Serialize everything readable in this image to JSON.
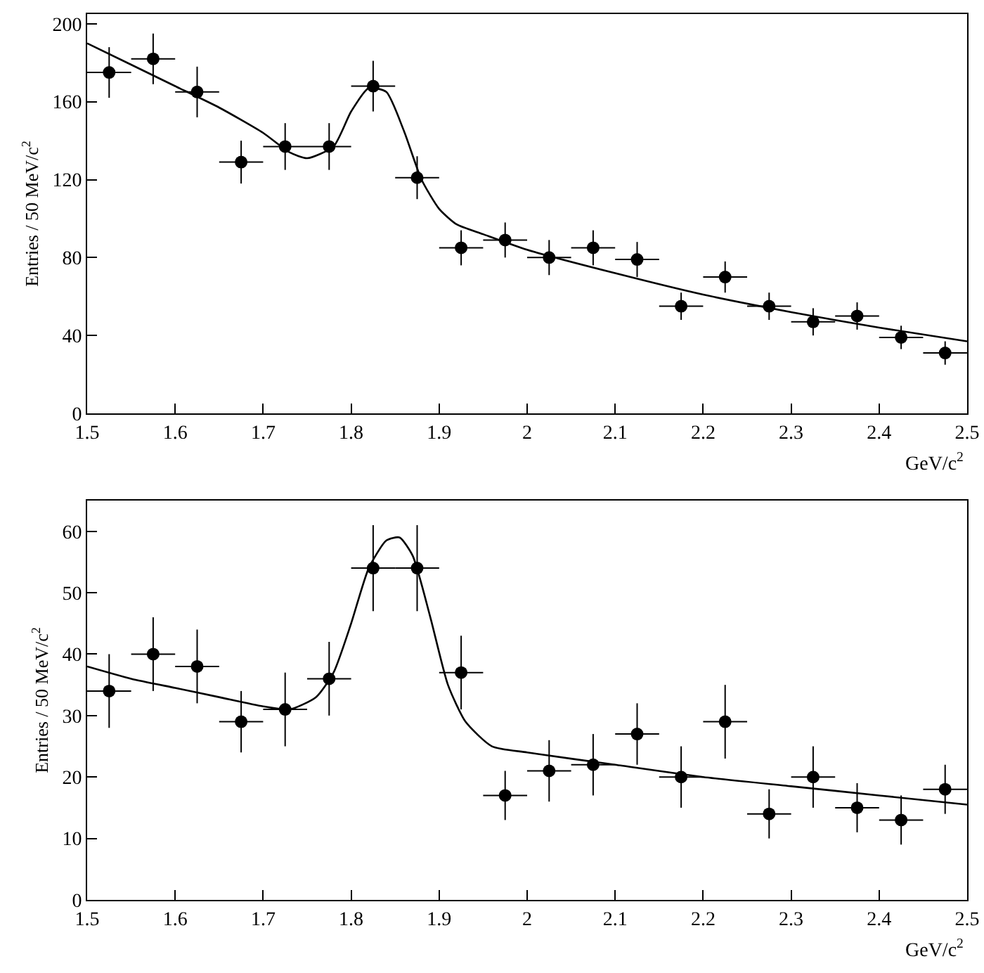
{
  "chart_data": [
    {
      "type": "scatter",
      "xlabel": "GeV/c$^{2}$",
      "ylabel": "Entries / 50 MeV/c$^{2}$",
      "xlim": [
        1.5,
        2.5
      ],
      "xticks": [
        1.5,
        1.6,
        1.7,
        1.8,
        1.9,
        2,
        2.1,
        2.2,
        2.3,
        2.4,
        2.5
      ],
      "ylim": [
        0,
        205
      ],
      "yticks": [
        0,
        40,
        80,
        120,
        160,
        200
      ],
      "grid": false,
      "series": [
        {
          "marker": "circle",
          "color": "#000000",
          "x": [
            1.525,
            1.575,
            1.625,
            1.675,
            1.725,
            1.775,
            1.825,
            1.875,
            1.925,
            1.975,
            2.025,
            2.075,
            2.125,
            2.175,
            2.225,
            2.275,
            2.325,
            2.375,
            2.425,
            2.475
          ],
          "values": [
            175,
            182,
            165,
            129,
            137,
            137,
            168,
            121,
            85,
            89,
            80,
            85,
            79,
            55,
            70,
            55,
            47,
            50,
            39,
            31
          ],
          "errors": [
            13,
            13,
            13,
            11,
            12,
            12,
            13,
            11,
            9,
            9,
            9,
            9,
            9,
            7,
            8,
            7,
            7,
            7,
            6,
            6
          ],
          "xerrors": [
            0.025,
            0.025,
            0.025,
            0.025,
            0.025,
            0.025,
            0.025,
            0.025,
            0.025,
            0.025,
            0.025,
            0.025,
            0.025,
            0.025,
            0.025,
            0.025,
            0.025,
            0.025,
            0.025,
            0.025
          ]
        },
        {
          "type": "line",
          "color": "#000000",
          "line_style": "solid",
          "x": [
            1.5,
            1.55,
            1.6,
            1.65,
            1.7,
            1.73,
            1.75,
            1.78,
            1.8,
            1.82,
            1.84,
            1.86,
            1.88,
            1.9,
            1.92,
            1.95,
            2.0,
            2.1,
            2.2,
            2.3,
            2.4,
            2.5
          ],
          "values": [
            190,
            179,
            168,
            157,
            144,
            134,
            131,
            137,
            155,
            167,
            165,
            145,
            120,
            105,
            97,
            92,
            84,
            72,
            61,
            52,
            44,
            37
          ]
        }
      ]
    },
    {
      "type": "scatter",
      "xlabel": "GeV/c$^{2}$",
      "ylabel": "Entries / 50 MeV/c$^{2}$",
      "xlim": [
        1.5,
        2.5
      ],
      "xticks": [
        1.5,
        1.6,
        1.7,
        1.8,
        1.9,
        2,
        2.1,
        2.2,
        2.3,
        2.4,
        2.5
      ],
      "ylim": [
        0,
        65
      ],
      "yticks": [
        0,
        10,
        20,
        30,
        40,
        50,
        60
      ],
      "grid": false,
      "series": [
        {
          "marker": "circle",
          "color": "#000000",
          "x": [
            1.525,
            1.575,
            1.625,
            1.675,
            1.725,
            1.775,
            1.825,
            1.875,
            1.925,
            1.975,
            2.025,
            2.075,
            2.125,
            2.175,
            2.225,
            2.275,
            2.325,
            2.375,
            2.425,
            2.475
          ],
          "values": [
            34,
            40,
            38,
            29,
            31,
            36,
            54,
            54,
            37,
            17,
            21,
            22,
            27,
            20,
            29,
            14,
            20,
            15,
            13,
            18
          ],
          "errors": [
            6,
            6,
            6,
            5,
            6,
            6,
            7,
            7,
            6,
            4,
            5,
            5,
            5,
            5,
            6,
            4,
            5,
            4,
            4,
            4
          ],
          "xerrors": [
            0.025,
            0.025,
            0.025,
            0.025,
            0.025,
            0.025,
            0.025,
            0.025,
            0.025,
            0.025,
            0.025,
            0.025,
            0.025,
            0.025,
            0.025,
            0.025,
            0.025,
            0.025,
            0.025,
            0.025
          ]
        },
        {
          "type": "line",
          "color": "#000000",
          "line_style": "solid",
          "x": [
            1.5,
            1.55,
            1.6,
            1.65,
            1.7,
            1.73,
            1.76,
            1.78,
            1.8,
            1.82,
            1.84,
            1.855,
            1.87,
            1.89,
            1.91,
            1.93,
            1.96,
            2.0,
            2.1,
            2.2,
            2.3,
            2.4,
            2.5
          ],
          "values": [
            38,
            36,
            34.5,
            33,
            31.5,
            31,
            33,
            37,
            45,
            54,
            58.5,
            59,
            56,
            46,
            35,
            29,
            25,
            24,
            22,
            20,
            18.5,
            17,
            15.5
          ]
        }
      ]
    }
  ]
}
